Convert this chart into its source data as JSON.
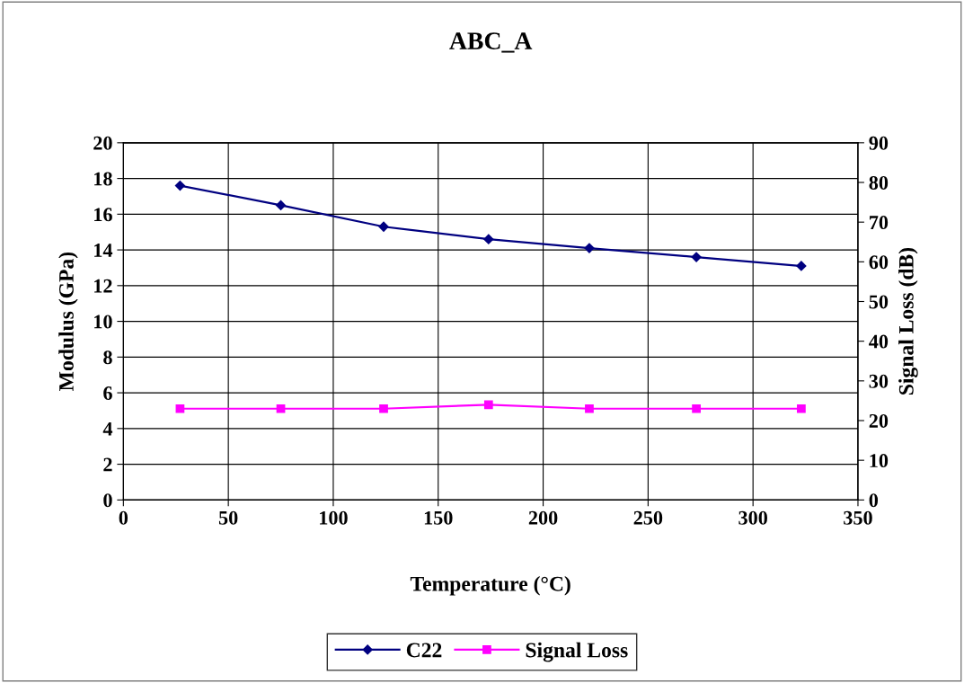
{
  "chart_data": {
    "type": "line",
    "title": "ABC_A",
    "xlabel": "Temperature (°C)",
    "ylabel": "Modulus (GPa)",
    "y2label": "Signal Loss (dB)",
    "xlim": [
      0,
      350
    ],
    "xticks": [
      0,
      50,
      100,
      150,
      200,
      250,
      300,
      350
    ],
    "ylim": [
      0,
      20
    ],
    "yticks": [
      0,
      2,
      4,
      6,
      8,
      10,
      12,
      14,
      16,
      18,
      20
    ],
    "y2lim": [
      0,
      90
    ],
    "y2ticks": [
      0,
      10,
      20,
      30,
      40,
      50,
      60,
      70,
      80,
      90
    ],
    "grid": true,
    "legend": "bottom",
    "series": [
      {
        "name": "C22",
        "color": "#000080",
        "marker": "diamond",
        "x": [
          27,
          75,
          124,
          174,
          222,
          273,
          323
        ],
        "values": [
          17.6,
          16.5,
          15.3,
          14.6,
          14.1,
          13.6,
          13.1
        ]
      },
      {
        "name": "Signal Loss",
        "color": "#ff00ff",
        "marker": "square",
        "axis": "y2",
        "x": [
          27,
          75,
          124,
          174,
          222,
          273,
          323
        ],
        "values": [
          23,
          23,
          23,
          24,
          23,
          23,
          23
        ]
      }
    ]
  }
}
